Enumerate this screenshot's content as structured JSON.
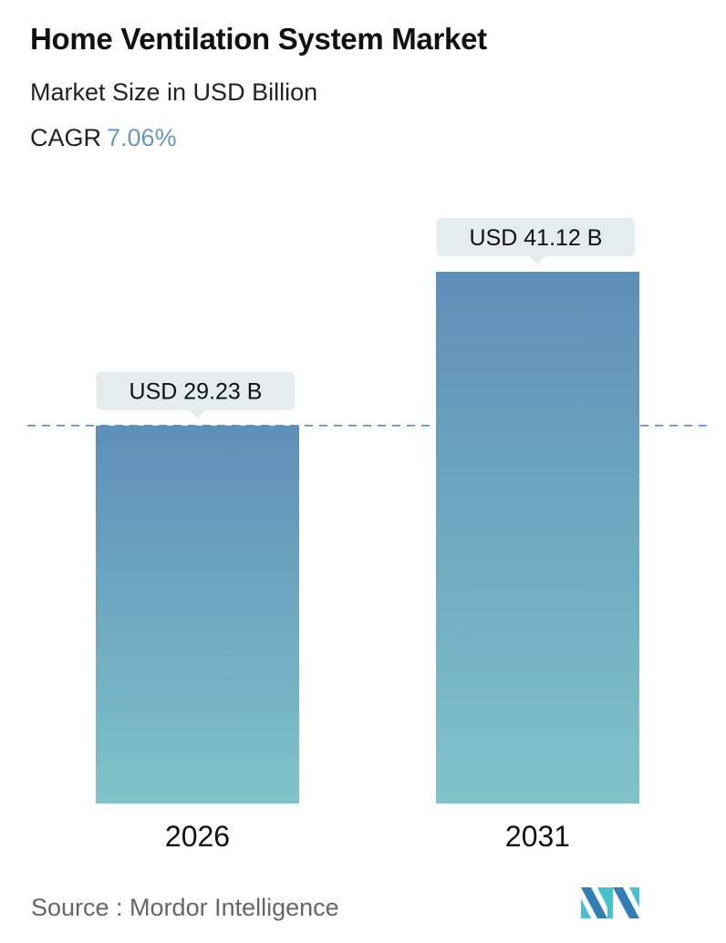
{
  "title": "Home Ventilation System Market",
  "subtitle": "Market Size in USD Billion",
  "cagr": {
    "label": "CAGR",
    "value": "7.06%"
  },
  "source": "Source :  Mordor Intelligence",
  "logo_text": "MI",
  "colors": {
    "bar_top": "#5d8fb7",
    "bar_bottom": "#7fc4c9",
    "accent": "#6a97bd",
    "label_bg": "#e4ecec",
    "dash": "#4e7fa6"
  },
  "chart_data": {
    "type": "bar",
    "categories": [
      "2026",
      "2031"
    ],
    "values": [
      29.23,
      41.12
    ],
    "data_labels": [
      "USD 29.23 B",
      "USD 41.12 B"
    ],
    "reference_line": {
      "value": 29.23,
      "style": "dashed"
    },
    "title": "Home Ventilation System Market",
    "ylabel": "",
    "xlabel": "",
    "grid": false
  }
}
